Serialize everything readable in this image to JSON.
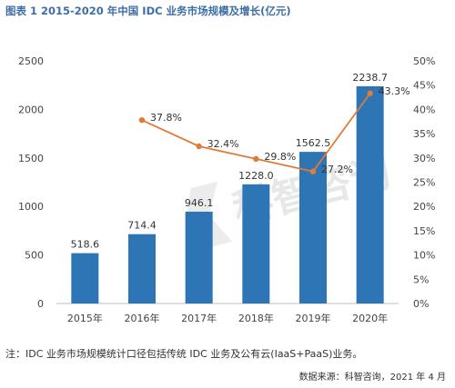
{
  "chart_data": {
    "type": "bar",
    "title": "图表 1 2015-2020 年中国 IDC 业务市场规模及增长(亿元)",
    "categories": [
      "2015年",
      "2016年",
      "2017年",
      "2018年",
      "2019年",
      "2020年"
    ],
    "series": [
      {
        "type": "bar",
        "values": [
          518.6,
          714.4,
          946.1,
          1228.0,
          1562.5,
          2238.7
        ],
        "labels": [
          "518.6",
          "714.4",
          "946.1",
          "1228.0",
          "1562.5",
          "2238.7"
        ],
        "color": "#2e75b6",
        "axis": "left"
      },
      {
        "type": "line",
        "x": [
          "2016年",
          "2017年",
          "2018年",
          "2019年",
          "2020年"
        ],
        "values": [
          37.8,
          32.4,
          29.8,
          27.2,
          43.3
        ],
        "labels": [
          "37.8%",
          "32.4%",
          "29.8%",
          "27.2%",
          "43.3%"
        ],
        "color": "#e07b39",
        "axis": "right"
      }
    ],
    "ylim": [
      0,
      2500
    ],
    "y_ticks": [
      "0",
      "500",
      "1000",
      "1500",
      "2000",
      "2500"
    ],
    "y2lim": [
      0,
      50
    ],
    "y2_ticks": [
      "0%",
      "5%",
      "10%",
      "15%",
      "20%",
      "25%",
      "30%",
      "35%",
      "40%",
      "45%",
      "50%"
    ],
    "grid": false,
    "legend": "none"
  },
  "note": "注：IDC 业务市场规模统计口径包括传统 IDC 业务及公有云(IaaS+PaaS)业务。",
  "source": "数据来源：科智咨询，2021 年 4 月",
  "watermark": "科智咨询"
}
